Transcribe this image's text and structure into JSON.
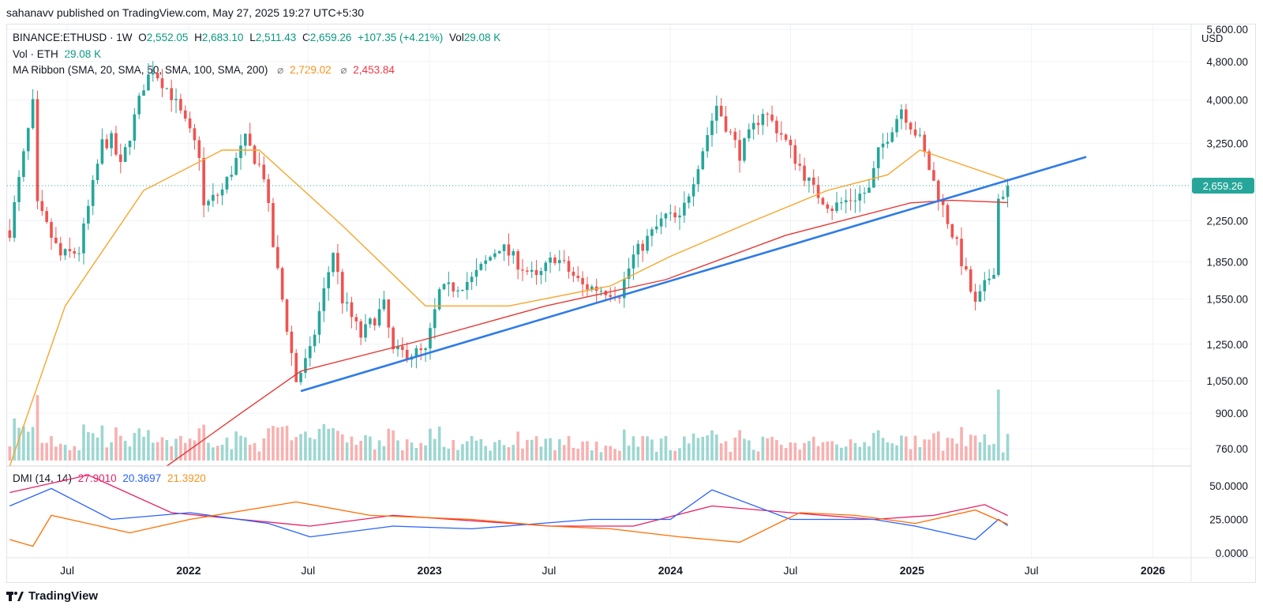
{
  "header": {
    "publisher_line": "sahanavv published on TradingView.com, May 27, 2025 19:27 UTC+5:30"
  },
  "legend": {
    "symbol": "BINANCE:ETHUSD · 1W",
    "open_key": "O",
    "open": "2,552.05",
    "high_key": "H",
    "high": "2,683.10",
    "low_key": "L",
    "low": "2,511.43",
    "close_key": "C",
    "close": "2,659.26",
    "change": "+107.35 (+4.21%)",
    "vol_key": "Vol",
    "vol": "29.08 K",
    "vol_line_label": "Vol · ETH",
    "vol_line_value": "29.08 K",
    "ma_label": "MA Ribbon (SMA, 20, SMA, 50, SMA, 100, SMA, 200)",
    "ma_sym": "⌀",
    "ma_value_1": "2,729.02",
    "ma_value_2": "2,453.84",
    "dmi_label": "DMI (14, 14)",
    "dmi_plus": "27.9010",
    "dmi_minus": "20.3697",
    "dmi_adx": "21.3920"
  },
  "price_axis": {
    "currency": "USD",
    "last_price_tag": "2,659.26"
  },
  "footer": {
    "brand": "TradingView"
  },
  "colors": {
    "up": "#26a69a",
    "down": "#ef5350",
    "ma50": "#f7a62a",
    "ma200": "#e53935",
    "trendline": "#2f7be8",
    "dmi_plus": "#e91e63",
    "dmi_minus": "#2962ff",
    "adx": "#ff6d00"
  },
  "chart_data": {
    "type": "candlestick",
    "title": "BINANCE:ETHUSD · 1W",
    "scale": "log",
    "ylim": [
      700,
      5600
    ],
    "xlim": [
      "2021-04-01",
      "2026-02-28"
    ],
    "y_ticks": [
      "5,600.00",
      "4,800.00",
      "4,000.00",
      "3,250.00",
      "2,250.00",
      "1,850.00",
      "1,550.00",
      "1,250.00",
      "1,050.00",
      "900.00",
      "760.00"
    ],
    "x_ticks": [
      {
        "label": "Jul",
        "date": "2021-07-01"
      },
      {
        "label": "2022",
        "date": "2022-01-01",
        "bold": true
      },
      {
        "label": "Jul",
        "date": "2022-07-01"
      },
      {
        "label": "2023",
        "date": "2023-01-01",
        "bold": true
      },
      {
        "label": "Jul",
        "date": "2023-07-01"
      },
      {
        "label": "2024",
        "date": "2024-01-01",
        "bold": true
      },
      {
        "label": "Jul",
        "date": "2024-07-01"
      },
      {
        "label": "2025",
        "date": "2025-01-01",
        "bold": true
      },
      {
        "label": "Jul",
        "date": "2025-07-01"
      },
      {
        "label": "2026",
        "date": "2026-01-01",
        "bold": true
      }
    ],
    "price_keypoints": [
      [
        "2021-04-05",
        2150
      ],
      [
        "2021-05-03",
        3450
      ],
      [
        "2021-05-10",
        3900
      ],
      [
        "2021-05-17",
        2400
      ],
      [
        "2021-06-21",
        1900
      ],
      [
        "2021-07-19",
        1950
      ],
      [
        "2021-08-23",
        3250
      ],
      [
        "2021-09-06",
        3300
      ],
      [
        "2021-09-20",
        2900
      ],
      [
        "2021-10-25",
        4300
      ],
      [
        "2021-11-08",
        4650
      ],
      [
        "2021-12-06",
        4100
      ],
      [
        "2022-01-17",
        3100
      ],
      [
        "2022-01-24",
        2400
      ],
      [
        "2022-02-21",
        2600
      ],
      [
        "2022-03-28",
        3300
      ],
      [
        "2022-04-25",
        2800
      ],
      [
        "2022-05-09",
        2000
      ],
      [
        "2022-06-13",
        1050
      ],
      [
        "2022-07-04",
        1200
      ],
      [
        "2022-08-08",
        1950
      ],
      [
        "2022-08-22",
        1550
      ],
      [
        "2022-09-19",
        1300
      ],
      [
        "2022-10-24",
        1500
      ],
      [
        "2022-11-07",
        1200
      ],
      [
        "2022-12-26",
        1200
      ],
      [
        "2023-01-16",
        1600
      ],
      [
        "2023-03-06",
        1700
      ],
      [
        "2023-04-17",
        2000
      ],
      [
        "2023-06-12",
        1700
      ],
      [
        "2023-07-10",
        1900
      ],
      [
        "2023-08-21",
        1650
      ],
      [
        "2023-10-16",
        1600
      ],
      [
        "2023-11-06",
        1900
      ],
      [
        "2023-12-25",
        2300
      ],
      [
        "2024-01-15",
        2250
      ],
      [
        "2024-03-11",
        3900
      ],
      [
        "2024-04-15",
        3100
      ],
      [
        "2024-05-20",
        3800
      ],
      [
        "2024-06-17",
        3400
      ],
      [
        "2024-08-05",
        2600
      ],
      [
        "2024-09-02",
        2400
      ],
      [
        "2024-10-28",
        2600
      ],
      [
        "2024-11-11",
        3100
      ],
      [
        "2024-12-16",
        3850
      ],
      [
        "2025-01-13",
        3300
      ],
      [
        "2025-02-03",
        2700
      ],
      [
        "2025-03-10",
        2000
      ],
      [
        "2025-04-07",
        1500
      ],
      [
        "2025-05-05",
        1800
      ],
      [
        "2025-05-12",
        2500
      ],
      [
        "2025-05-26",
        2659.26
      ]
    ],
    "ma50_keypoints": [
      [
        "2021-04-05",
        700
      ],
      [
        "2021-06-28",
        1500
      ],
      [
        "2021-10-25",
        2600
      ],
      [
        "2022-02-21",
        3150
      ],
      [
        "2022-04-18",
        3150
      ],
      [
        "2022-08-22",
        2200
      ],
      [
        "2022-12-26",
        1500
      ],
      [
        "2023-05-01",
        1500
      ],
      [
        "2023-10-02",
        1650
      ],
      [
        "2024-01-01",
        1900
      ],
      [
        "2024-05-06",
        2250
      ],
      [
        "2024-08-26",
        2600
      ],
      [
        "2024-11-25",
        2800
      ],
      [
        "2025-01-13",
        3150
      ],
      [
        "2025-05-26",
        2729.02
      ]
    ],
    "ma200_keypoints": [
      [
        "2021-11-29",
        700
      ],
      [
        "2022-03-21",
        900
      ],
      [
        "2022-06-20",
        1100
      ],
      [
        "2022-12-26",
        1280
      ],
      [
        "2023-06-26",
        1500
      ],
      [
        "2023-12-25",
        1700
      ],
      [
        "2024-06-24",
        2100
      ],
      [
        "2024-12-30",
        2450
      ],
      [
        "2025-03-03",
        2480
      ],
      [
        "2025-05-26",
        2453.84
      ]
    ],
    "trendline": [
      [
        "2022-06-20",
        1000
      ],
      [
        "2025-09-22",
        3050
      ]
    ],
    "dmi": {
      "ylim": [
        0,
        60
      ],
      "y_ticks": [
        "50.0000",
        "25.0000",
        "0.0000"
      ],
      "plus_di": [
        [
          "2021-04-05",
          45
        ],
        [
          "2021-08-02",
          58
        ],
        [
          "2021-12-06",
          30
        ],
        [
          "2022-03-21",
          25
        ],
        [
          "2022-07-04",
          20
        ],
        [
          "2022-11-07",
          28
        ],
        [
          "2023-03-06",
          24
        ],
        [
          "2023-07-03",
          20
        ],
        [
          "2023-11-06",
          20
        ],
        [
          "2024-03-04",
          35
        ],
        [
          "2024-07-01",
          30
        ],
        [
          "2024-11-04",
          25
        ],
        [
          "2025-02-03",
          28
        ],
        [
          "2025-04-21",
          36
        ],
        [
          "2025-05-26",
          27.901
        ]
      ],
      "minus_di": [
        [
          "2021-04-05",
          35
        ],
        [
          "2021-06-07",
          48
        ],
        [
          "2021-09-06",
          25
        ],
        [
          "2022-01-03",
          30
        ],
        [
          "2022-05-02",
          22
        ],
        [
          "2022-07-04",
          12
        ],
        [
          "2022-11-07",
          20
        ],
        [
          "2023-03-06",
          18
        ],
        [
          "2023-09-04",
          25
        ],
        [
          "2024-01-01",
          25
        ],
        [
          "2024-03-04",
          47
        ],
        [
          "2024-07-01",
          25
        ],
        [
          "2024-11-04",
          25
        ],
        [
          "2025-01-06",
          20
        ],
        [
          "2025-04-07",
          10
        ],
        [
          "2025-05-12",
          25
        ],
        [
          "2025-05-26",
          20.3697
        ]
      ],
      "adx": [
        [
          "2021-04-05",
          10
        ],
        [
          "2021-05-10",
          5
        ],
        [
          "2021-06-07",
          28
        ],
        [
          "2021-10-04",
          15
        ],
        [
          "2022-01-03",
          25
        ],
        [
          "2022-06-13",
          38
        ],
        [
          "2022-10-03",
          28
        ],
        [
          "2023-03-06",
          25
        ],
        [
          "2023-07-03",
          20
        ],
        [
          "2023-10-02",
          18
        ],
        [
          "2024-01-15",
          12
        ],
        [
          "2024-04-15",
          8
        ],
        [
          "2024-07-15",
          30
        ],
        [
          "2024-10-07",
          28
        ],
        [
          "2025-01-06",
          22
        ],
        [
          "2025-04-07",
          32
        ],
        [
          "2025-05-26",
          21.392
        ]
      ]
    }
  }
}
